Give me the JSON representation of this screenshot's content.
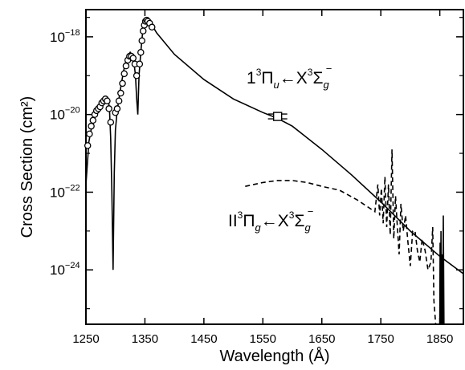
{
  "chart_data": {
    "type": "line",
    "xlabel": "Wavelength (Å)",
    "ylabel": "Cross Section (cm²)",
    "xlim": [
      1250,
      1890
    ],
    "ylim_log10": [
      -25.4,
      -17.3
    ],
    "y_scale": "log",
    "grid": false,
    "xticks": [
      1250,
      1350,
      1450,
      1550,
      1650,
      1750,
      1850
    ],
    "xtick_labels": [
      "1250",
      "1350",
      "1450",
      "1550",
      "1650",
      "1750",
      "1850"
    ],
    "yticks_major": [
      {
        "base": "10",
        "exp": "−18",
        "log10": -18
      },
      {
        "base": "10",
        "exp": "−20",
        "log10": -20
      },
      {
        "base": "10",
        "exp": "−22",
        "log10": -22
      },
      {
        "base": "10",
        "exp": "−24",
        "log10": -24
      }
    ],
    "yticks_minor_log10": [
      -25,
      -23,
      -21,
      -19,
      -17.5
    ],
    "series": [
      {
        "style": "solid",
        "points": [
          [
            1250,
            -21.8
          ],
          [
            1255,
            -20.7
          ],
          [
            1260,
            -20.3
          ],
          [
            1265,
            -20.0
          ],
          [
            1270,
            -19.8
          ],
          [
            1275,
            -19.65
          ],
          [
            1280,
            -19.6
          ],
          [
            1285,
            -19.55
          ],
          [
            1288,
            -19.6
          ],
          [
            1290,
            -19.9
          ],
          [
            1292,
            -20.6
          ],
          [
            1294,
            -22.0
          ],
          [
            1296,
            -24.0
          ],
          [
            1298,
            -21.5
          ],
          [
            1300,
            -20.4
          ],
          [
            1303,
            -19.9
          ],
          [
            1306,
            -19.6
          ],
          [
            1310,
            -19.2
          ],
          [
            1315,
            -18.8
          ],
          [
            1320,
            -18.5
          ],
          [
            1325,
            -18.4
          ],
          [
            1328,
            -18.45
          ],
          [
            1331,
            -18.6
          ],
          [
            1334,
            -19.0
          ],
          [
            1336,
            -19.6
          ],
          [
            1338,
            -20.0
          ],
          [
            1340,
            -19.0
          ],
          [
            1343,
            -18.4
          ],
          [
            1346,
            -17.9
          ],
          [
            1350,
            -17.6
          ],
          [
            1354,
            -17.55
          ],
          [
            1358,
            -17.6
          ],
          [
            1362,
            -17.7
          ],
          [
            1370,
            -17.9
          ],
          [
            1400,
            -18.45
          ],
          [
            1450,
            -19.1
          ],
          [
            1500,
            -19.6
          ],
          [
            1550,
            -19.95
          ],
          [
            1575,
            -20.1
          ],
          [
            1600,
            -20.3
          ],
          [
            1650,
            -20.9
          ],
          [
            1700,
            -21.55
          ],
          [
            1750,
            -22.25
          ],
          [
            1800,
            -23.0
          ],
          [
            1850,
            -23.65
          ],
          [
            1890,
            -24.1
          ]
        ]
      },
      {
        "style": "dashed",
        "points": [
          [
            1520,
            -21.85
          ],
          [
            1550,
            -21.75
          ],
          [
            1575,
            -21.7
          ],
          [
            1600,
            -21.7
          ],
          [
            1625,
            -21.75
          ],
          [
            1650,
            -21.85
          ],
          [
            1680,
            -21.95
          ],
          [
            1710,
            -22.2
          ],
          [
            1740,
            -22.5
          ],
          [
            1745,
            -21.8
          ],
          [
            1748,
            -22.6
          ],
          [
            1751,
            -21.9
          ],
          [
            1754,
            -22.8
          ],
          [
            1757,
            -21.6
          ],
          [
            1760,
            -22.9
          ],
          [
            1763,
            -21.8
          ],
          [
            1766,
            -23.1
          ],
          [
            1769,
            -20.9
          ],
          [
            1772,
            -23.2
          ],
          [
            1775,
            -22.1
          ],
          [
            1778,
            -22.9
          ],
          [
            1781,
            -23.6
          ],
          [
            1784,
            -22.3
          ],
          [
            1788,
            -23.0
          ],
          [
            1792,
            -22.6
          ],
          [
            1796,
            -23.3
          ],
          [
            1800,
            -23.9
          ],
          [
            1804,
            -23.0
          ],
          [
            1808,
            -23.0
          ],
          [
            1812,
            -23.5
          ],
          [
            1816,
            -23.8
          ],
          [
            1820,
            -23.2
          ],
          [
            1825,
            -23.5
          ],
          [
            1830,
            -24.0
          ],
          [
            1835,
            -23.8
          ],
          [
            1838,
            -22.9
          ],
          [
            1840,
            -24.8
          ],
          [
            1843,
            -25.4
          ]
        ]
      },
      {
        "style": "solid-spike",
        "points": [
          [
            1850,
            -25.4
          ],
          [
            1850.5,
            -23.3
          ],
          [
            1851,
            -25.4
          ],
          [
            1852,
            -23.0
          ],
          [
            1853,
            -25.4
          ],
          [
            1854,
            -23.6
          ],
          [
            1855,
            -25.4
          ],
          [
            1856,
            -22.6
          ],
          [
            1857,
            -25.4
          ]
        ]
      }
    ],
    "measured_points": [
      [
        1253,
        -20.8
      ],
      [
        1256,
        -20.5
      ],
      [
        1259,
        -20.3
      ],
      [
        1262,
        -20.15
      ],
      [
        1265,
        -20.0
      ],
      [
        1268,
        -19.9
      ],
      [
        1271,
        -19.85
      ],
      [
        1274,
        -19.8
      ],
      [
        1277,
        -19.7
      ],
      [
        1280,
        -19.65
      ],
      [
        1283,
        -19.6
      ],
      [
        1286,
        -19.65
      ],
      [
        1289,
        -19.85
      ],
      [
        1292,
        -20.2
      ],
      [
        1300,
        -19.95
      ],
      [
        1303,
        -19.85
      ],
      [
        1306,
        -19.65
      ],
      [
        1309,
        -19.45
      ],
      [
        1312,
        -19.2
      ],
      [
        1315,
        -18.95
      ],
      [
        1318,
        -18.75
      ],
      [
        1321,
        -18.6
      ],
      [
        1324,
        -18.5
      ],
      [
        1327,
        -18.5
      ],
      [
        1330,
        -18.55
      ],
      [
        1333,
        -18.7
      ],
      [
        1336,
        -19.0
      ],
      [
        1341,
        -18.7
      ],
      [
        1343,
        -18.4
      ],
      [
        1345,
        -18.1
      ],
      [
        1347,
        -17.85
      ],
      [
        1349,
        -17.7
      ],
      [
        1351,
        -17.6
      ],
      [
        1353,
        -17.57
      ],
      [
        1355,
        -17.6
      ],
      [
        1358,
        -17.65
      ],
      [
        1362,
        -17.75
      ]
    ],
    "error_bar": {
      "x": 1575,
      "y_log10": -20.05
    },
    "annotations": [
      {
        "parts": [
          [
            "1",
            "normal"
          ],
          [
            "3",
            "sup"
          ],
          [
            "Π",
            "normal"
          ],
          [
            "u",
            "sub"
          ],
          [
            "←X",
            "normal"
          ],
          [
            "3",
            "sup"
          ],
          [
            "Σ",
            "normal"
          ],
          [
            "g",
            "sub"
          ],
          [
            "−",
            "supsub"
          ]
        ]
      },
      {
        "parts": [
          [
            "II",
            "normal"
          ],
          [
            "3",
            "sup"
          ],
          [
            "Π",
            "normal"
          ],
          [
            "g",
            "sub"
          ],
          [
            "←X",
            "normal"
          ],
          [
            "3",
            "sup"
          ],
          [
            "Σ",
            "normal"
          ],
          [
            "g",
            "sub"
          ],
          [
            "−",
            "supsub"
          ]
        ]
      }
    ]
  }
}
